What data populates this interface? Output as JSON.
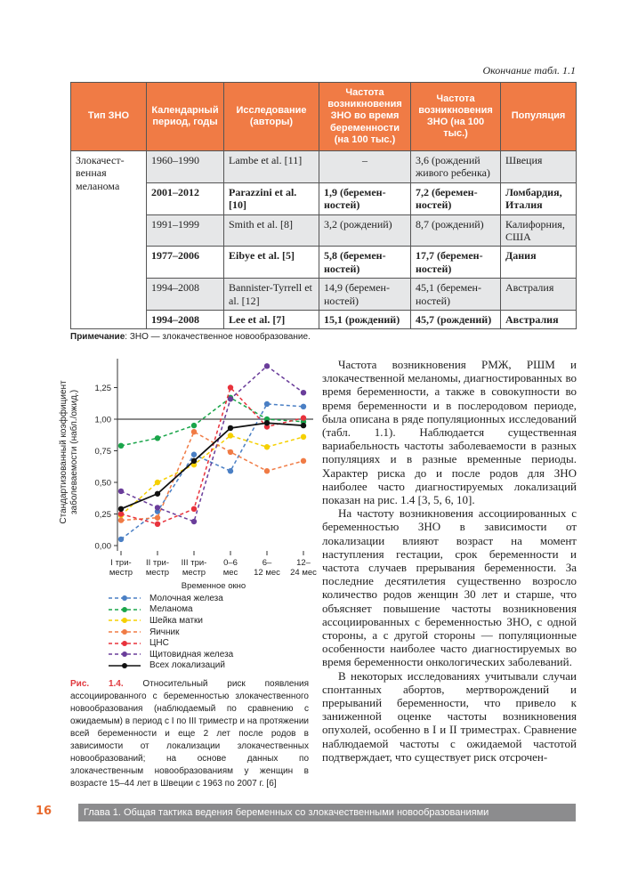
{
  "table_caption": "Окончание табл. 1.1",
  "table": {
    "headers": [
      "Тип ЗНО",
      "Календарный период, годы",
      "Исследование (авторы)",
      "Частота возникновения ЗНО во время беременности (на 100 тыс.)",
      "Частота возникновения ЗНО (на 100 тыс.)",
      "Популяция"
    ],
    "type": "Злокачест-венная меланома",
    "rows": [
      [
        "1960–1990",
        "Lambe et al. [11]",
        "–",
        "3,6 (рождений живого ребенка)",
        "Швеция"
      ],
      [
        "2001–2012",
        "Parazzini et al. [10]",
        "1,9 (беремен-ностей)",
        "7,2 (беремен-ностей)",
        "Ломбардия, Италия"
      ],
      [
        "1991–1999",
        "Smith et al. [8]",
        "3,2 (рождений)",
        "8,7 (рождений)",
        "Калифорния, США"
      ],
      [
        "1977–2006",
        "Eibye et al. [5]",
        "5,8 (беремен-ностей)",
        "17,7 (беремен-ностей)",
        "Дания"
      ],
      [
        "1994–2008",
        "Bannister-Tyrrell et al. [12]",
        "14,9 (беремен-ностей)",
        "45,1 (беремен-ностей)",
        "Австралия"
      ],
      [
        "1994–2008",
        "Lee et al. [7]",
        "15,1 (рождений)",
        "45,7 (рождений)",
        "Австралия"
      ]
    ]
  },
  "note_label": "Примечание",
  "note_text": ": ЗНО — злокачественное новообразование.",
  "chart_data": {
    "type": "line",
    "xlabel": "Временное окно",
    "ylabel": "Стандартизованный коэффициент заболеваемости (набл./ожид.)",
    "categories": [
      [
        "I три-",
        "местр"
      ],
      [
        "II три-",
        "местр"
      ],
      [
        "III три-",
        "местр"
      ],
      [
        "0–6",
        "мес"
      ],
      [
        "6–",
        "12 мес"
      ],
      [
        "12–",
        "24 мес"
      ]
    ],
    "ylim": [
      0,
      1.45
    ],
    "yticks": [
      "0,00",
      "0,25",
      "0,50",
      "0,75",
      "1,00",
      "1,25"
    ],
    "reference_line": 1.0,
    "series": [
      {
        "name": "Молочная железа",
        "color": "#4a7fc4",
        "dashed": true,
        "values": [
          0.05,
          0.27,
          0.72,
          0.59,
          1.12,
          1.1
        ]
      },
      {
        "name": "Меланома",
        "color": "#1aa54a",
        "dashed": true,
        "values": [
          0.79,
          0.85,
          0.95,
          1.17,
          1.0,
          0.98
        ]
      },
      {
        "name": "Шейка матки",
        "color": "#f5d000",
        "dashed": true,
        "values": [
          0.24,
          0.5,
          0.64,
          0.87,
          0.78,
          0.86
        ]
      },
      {
        "name": "Яичник",
        "color": "#f07b45",
        "dashed": true,
        "values": [
          0.2,
          0.22,
          0.9,
          0.74,
          0.59,
          0.67
        ]
      },
      {
        "name": "ЦНС",
        "color": "#e8323c",
        "dashed": true,
        "values": [
          0.25,
          0.17,
          0.29,
          1.25,
          0.94,
          1.01
        ]
      },
      {
        "name": "Щитовидная железа",
        "color": "#6a3d9a",
        "dashed": true,
        "values": [
          0.43,
          0.3,
          0.19,
          1.16,
          1.42,
          1.21
        ]
      },
      {
        "name": "Всех локализаций",
        "color": "#111111",
        "dashed": false,
        "values": [
          0.29,
          0.41,
          0.67,
          0.93,
          0.97,
          0.95
        ]
      }
    ]
  },
  "figure": {
    "label": "Рис. 1.4.",
    "caption": " Относительный риск появления ассоциированного с беременностью злокачественного новообразования (наблюдаемый по сравнению с ожидаемым) в период с I по III триместр и на протяжении всей беременности и еще 2 лет после родов в зависимости от локализации злокачественных новообразований; на основе данных по злокачественным новообразованиям у женщин в возрасте 15–44 лет в Швеции с 1963 по 2007 г. [6]"
  },
  "body": [
    "Частота возникновения РМЖ, РШМ и злокачественной меланомы, диагностированных во время беременности, а также в совокупности во время беременности и в послеродовом периоде, была описана в ряде популяционных исследований (табл. 1.1). Наблюдается существенная вариабельность частоты заболеваемости в разных популяциях и в разные временные периоды. Характер риска до и после родов для ЗНО наиболее часто диагностируемых локализаций показан на рис. 1.4 [3, 5, 6, 10].",
    "На частоту возникновения ассоциированных с беременностью ЗНО в зависимости от локализации влияют возраст на момент наступления гестации, срок беременности и частота случаев прерывания беременности. За последние десятилетия существенно возросло количество родов женщин 30 лет и старше, что объясняет повышение частоты возникновения ассоциированных с беременностью ЗНО, с одной стороны, а с другой стороны — популяционные особенности наиболее часто диагностируемых во время беременности онкологических заболеваний.",
    "В некоторых исследованиях учитывали случаи спонтанных абортов, мертворождений и прерываний беременности, что привело к заниженной оценке частоты возникновения опухолей, особенно в I и II триместрах. Сравнение наблюдаемой частоты с ожидаемой частотой подтверждает, что существует риск отсрочен-"
  ],
  "footer": {
    "page": "16",
    "chapter": "Глава 1. Общая тактика ведения беременных со злокачественными новообразованиями"
  }
}
